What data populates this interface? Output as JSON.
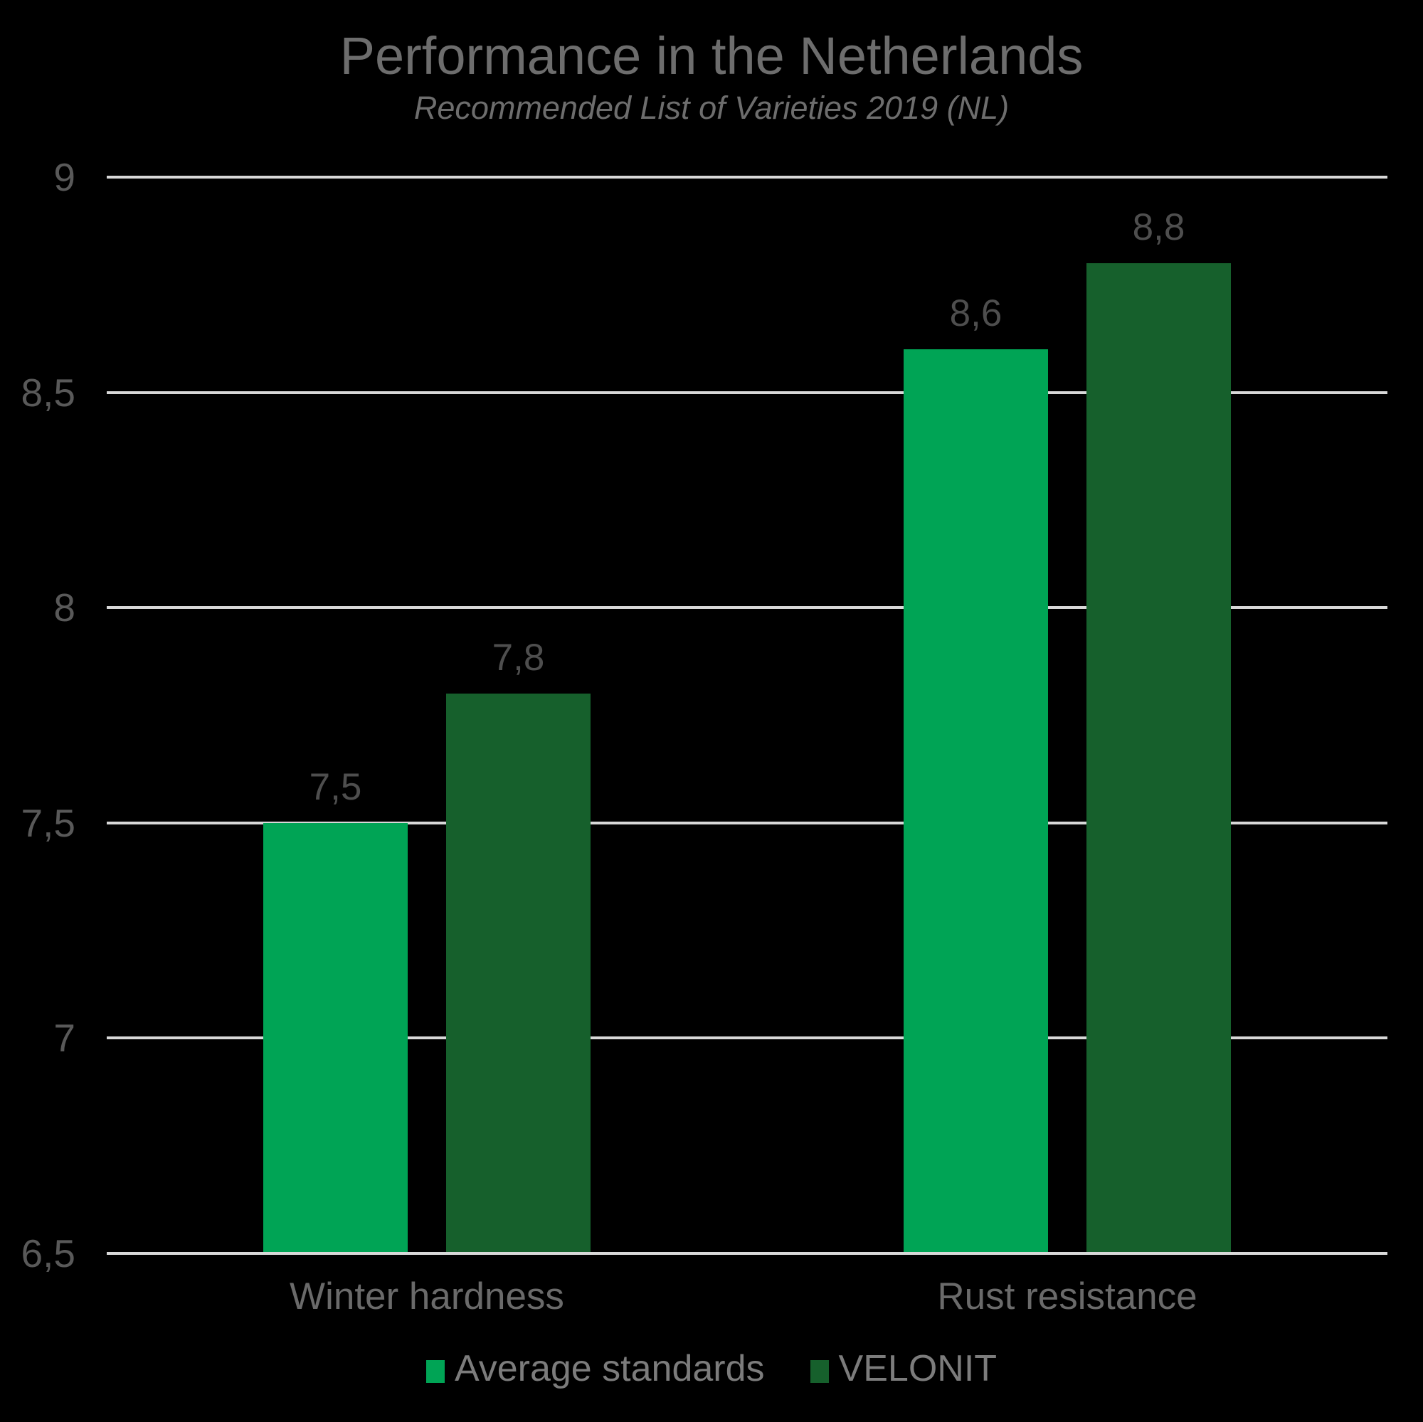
{
  "title": "Performance in the Netherlands",
  "subtitle": "Recommended List of Varieties 2019 (NL)",
  "colors": {
    "background": "#000000",
    "title_text": "#6d6d6d",
    "axis_tick_text": "#595959",
    "category_text": "#6a6a6a",
    "data_label_text": "#4e4e4e",
    "legend_text": "#7c7c7c",
    "gridline": "#d8d8d8",
    "series_average_standards": "#00a455",
    "series_velonit": "#16602c"
  },
  "chart_data": {
    "type": "bar",
    "title": "Performance in the Netherlands",
    "subtitle": "Recommended List of Varieties 2019 (NL)",
    "categories": [
      "Winter hardness",
      "Rust resistance"
    ],
    "series": [
      {
        "name": "Average standards",
        "color": "#00a455",
        "values": [
          7.5,
          8.6
        ],
        "value_labels": [
          "7,5",
          "8,6"
        ]
      },
      {
        "name": "VELONIT",
        "color": "#16602c",
        "values": [
          7.8,
          8.8
        ],
        "value_labels": [
          "7,8",
          "8,8"
        ]
      }
    ],
    "xlabel": "",
    "ylabel": "",
    "ylim": [
      6.5,
      9
    ],
    "y_step": 0.5,
    "y_tick_labels": [
      "9",
      "8,5",
      "8",
      "7,5",
      "7",
      "6,5"
    ],
    "decimal_separator": ",",
    "grid": true,
    "legend_position": "bottom"
  }
}
